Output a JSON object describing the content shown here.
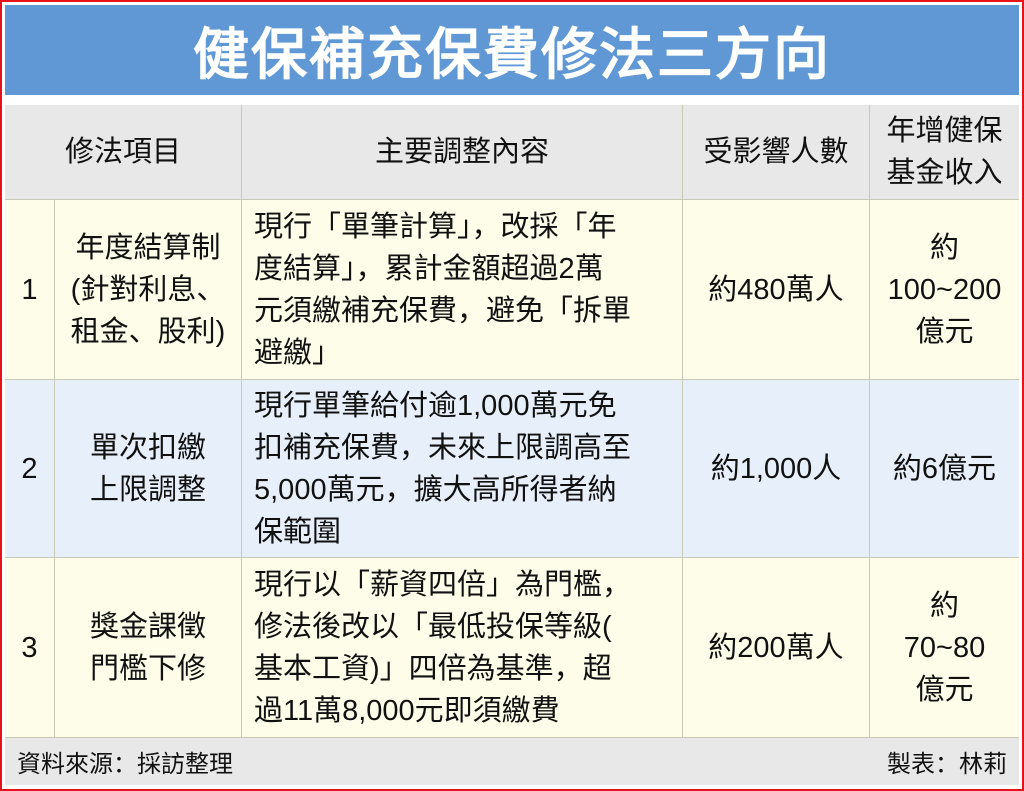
{
  "title": "健保補充保費修法三方向",
  "colors": {
    "title_bg": "#5f98d4",
    "header_bg": "#e8e8e8",
    "row_cream": "#fefde9",
    "row_blue": "#e6effa",
    "border": "#e8121a"
  },
  "headers": {
    "item": "修法項目",
    "content": "主要調整內容",
    "affected": "受影響人數",
    "revenue": [
      "年增健保",
      "基金收入"
    ]
  },
  "rows": [
    {
      "no": "1",
      "item": [
        "年度結算制",
        "(針對利息、",
        "租金、股利)"
      ],
      "content": [
        "現行「單筆計算」，改採「年",
        "度結算」，累計金額超過2萬",
        "元須繳補充保費，避免「拆單",
        "避繳」"
      ],
      "affected": [
        "約480萬人"
      ],
      "revenue": [
        "約",
        "100~200",
        "億元"
      ]
    },
    {
      "no": "2",
      "item": [
        "單次扣繳",
        "上限調整"
      ],
      "content": [
        "現行單筆給付逾1,000萬元免",
        "扣補充保費，未來上限調高至",
        "5,000萬元，擴大高所得者納",
        "保範圍"
      ],
      "affected": [
        "約1,000人"
      ],
      "revenue": [
        "約6億元"
      ]
    },
    {
      "no": "3",
      "item": [
        "獎金課徵",
        "門檻下修"
      ],
      "content": [
        "現行以「薪資四倍」為門檻，",
        "修法後改以「最低投保等級(",
        "基本工資)」四倍為基準，超",
        "過11萬8,000元即須繳費"
      ],
      "affected": [
        "約200萬人"
      ],
      "revenue": [
        "約",
        "70~80",
        "億元"
      ]
    }
  ],
  "footer": {
    "source": "資料來源：採訪整理",
    "author": "製表：林莉"
  }
}
